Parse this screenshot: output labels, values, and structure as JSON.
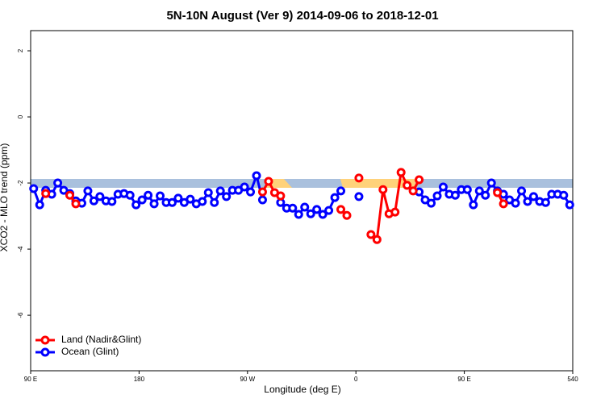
{
  "chart_data": {
    "type": "line",
    "title": "5N-10N August (Ver 9)   2014-09-06 to 2018-12-01",
    "x_label": "Longitude (deg E)",
    "y_label": "XCO2 - MLO trend (ppm)",
    "x": [
      92.5,
      97.5,
      102.5,
      107.5,
      112.5,
      117.5,
      122.5,
      127.5,
      132.5,
      137.5,
      142.5,
      147.5,
      152.5,
      157.5,
      162.5,
      167.5,
      172.5,
      177.5,
      182.5,
      187.5,
      192.5,
      197.5,
      202.5,
      207.5,
      212.5,
      217.5,
      222.5,
      227.5,
      232.5,
      237.5,
      242.5,
      247.5,
      252.5,
      257.5,
      262.5,
      267.5,
      272.5,
      277.5,
      282.5,
      287.5,
      292.5,
      297.5,
      302.5,
      307.5,
      312.5,
      317.5,
      322.5,
      327.5,
      332.5,
      337.5,
      342.5,
      347.5,
      352.5,
      357.5,
      362.5,
      367.5,
      372.5,
      377.5,
      382.5,
      387.5,
      392.5,
      397.5,
      402.5,
      407.5,
      412.5,
      417.5,
      422.5,
      427.5,
      432.5,
      437.5,
      442.5,
      447.5,
      452.5,
      457.5,
      462.5,
      467.5,
      472.5,
      477.5,
      482.5,
      487.5,
      492.5,
      497.5,
      502.5,
      507.5,
      512.5,
      517.5,
      522.5,
      527.5,
      532.5,
      537.5
    ],
    "series": [
      {
        "name": "Land (Nadir&Glint)",
        "color": "#ff0000",
        "values": [
          null,
          null,
          -2.32,
          null,
          null,
          null,
          -2.37,
          -2.63,
          null,
          null,
          null,
          null,
          null,
          null,
          null,
          null,
          null,
          null,
          null,
          null,
          null,
          null,
          null,
          null,
          null,
          null,
          null,
          null,
          null,
          null,
          null,
          null,
          null,
          null,
          null,
          null,
          null,
          null,
          -2.27,
          -1.95,
          -2.29,
          -2.39,
          null,
          null,
          null,
          null,
          null,
          null,
          null,
          null,
          null,
          -2.8,
          -2.98,
          null,
          -1.85,
          null,
          -3.56,
          -3.71,
          -2.2,
          -2.93,
          -2.88,
          -1.68,
          -2.07,
          -2.24,
          -1.9,
          null,
          null,
          null,
          null,
          null,
          null,
          null,
          null,
          null,
          null,
          null,
          null,
          -2.29,
          -2.63,
          null,
          null,
          null,
          null,
          null,
          null,
          null,
          null,
          null,
          null,
          null
        ]
      },
      {
        "name": "Ocean (Glint)",
        "color": "#0000ff",
        "values": [
          -2.17,
          -2.66,
          -2.22,
          -2.34,
          -2.0,
          -2.22,
          -2.32,
          -2.54,
          -2.61,
          -2.24,
          -2.54,
          -2.41,
          -2.54,
          -2.56,
          -2.34,
          -2.32,
          -2.37,
          -2.66,
          -2.51,
          -2.37,
          -2.63,
          -2.39,
          -2.59,
          -2.59,
          -2.46,
          -2.59,
          -2.49,
          -2.63,
          -2.56,
          -2.29,
          -2.59,
          -2.24,
          -2.41,
          -2.22,
          -2.22,
          -2.12,
          -2.27,
          -1.78,
          -2.51,
          null,
          null,
          -2.59,
          -2.76,
          -2.76,
          -2.95,
          -2.73,
          -2.93,
          -2.8,
          -2.95,
          -2.83,
          -2.44,
          -2.24,
          null,
          null,
          -2.41,
          null,
          null,
          null,
          null,
          null,
          null,
          null,
          null,
          null,
          -2.27,
          -2.51,
          -2.61,
          -2.39,
          -2.12,
          -2.34,
          -2.37,
          -2.2,
          -2.2,
          -2.66,
          -2.24,
          -2.37,
          -2.0,
          -2.24,
          -2.34,
          -2.51,
          -2.61,
          -2.24,
          -2.56,
          -2.41,
          -2.56,
          -2.59,
          -2.34,
          -2.34,
          -2.37,
          -2.66
        ]
      }
    ],
    "xlim": [
      90,
      540
    ],
    "xticks": [
      {
        "value": 90,
        "label": "90 E"
      },
      180,
      {
        "value": 270,
        "label": "90 W"
      },
      {
        "value": 360,
        "label": "0"
      },
      {
        "value": 450,
        "label": "90 E"
      },
      540
    ],
    "ylim": [
      -7.68,
      2.61
    ],
    "yticks": [
      -6,
      -4,
      -2,
      0,
      2
    ],
    "legend": "bottom-left"
  }
}
